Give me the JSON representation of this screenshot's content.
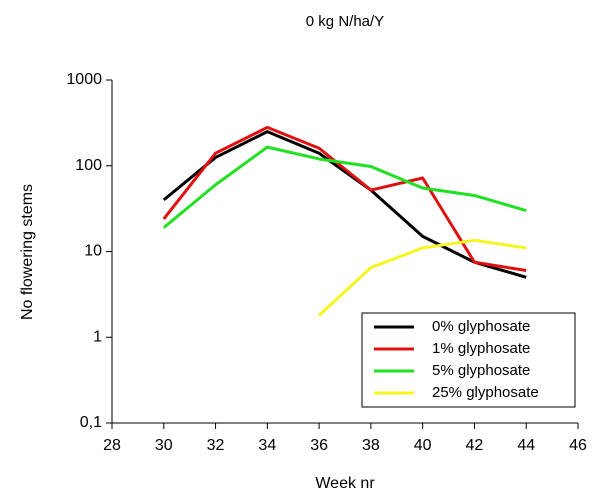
{
  "chart_data": {
    "type": "line",
    "title": "0 kg N/ha/Y",
    "xlabel": "Week nr",
    "ylabel": "No flowering stems",
    "x": [
      30,
      32,
      34,
      36,
      38,
      40,
      42,
      44
    ],
    "series": [
      {
        "name": "0% glyphosate",
        "color": "#000000",
        "values": [
          40,
          125,
          250,
          140,
          52,
          15,
          7.5,
          5
        ]
      },
      {
        "name": "1% glyphosate",
        "color": "#e01010",
        "values": [
          24,
          140,
          280,
          160,
          52,
          72,
          7.5,
          6
        ]
      },
      {
        "name": "5% glyphosate",
        "color": "#22e022",
        "values": [
          19,
          60,
          165,
          120,
          98,
          55,
          45,
          30
        ]
      },
      {
        "name": "25% glyphosate",
        "color": "#f5f520",
        "values": [
          null,
          null,
          null,
          1.8,
          6.5,
          11,
          13.5,
          11
        ]
      }
    ],
    "xlim": [
      28,
      46
    ],
    "xticks": [
      28,
      30,
      32,
      34,
      36,
      38,
      40,
      42,
      44,
      46
    ],
    "ylim": [
      0.1,
      1000
    ],
    "yticks": [
      {
        "value": 0.1,
        "label": "0,1"
      },
      1,
      10,
      100,
      1000
    ],
    "log_y": true,
    "grid": false,
    "legend": "lower right"
  }
}
